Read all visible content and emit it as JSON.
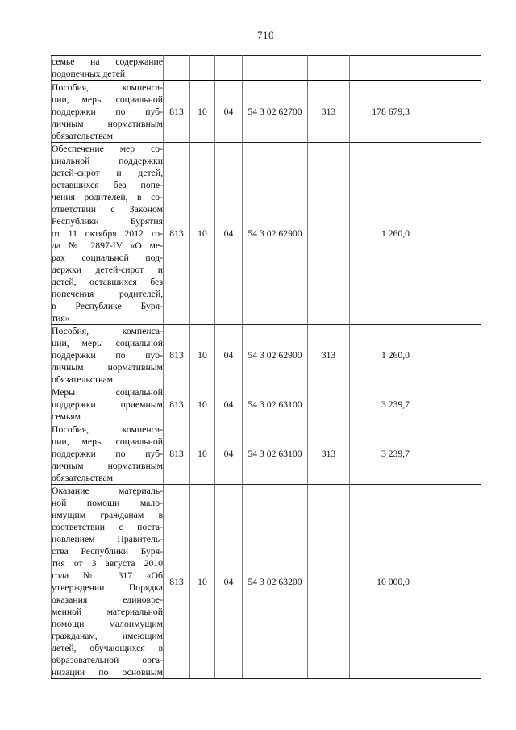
{
  "page": {
    "number": "710"
  },
  "table": {
    "rows": [
      {
        "name_lines": [
          "семье на содержание",
          "подопечных детей"
        ],
        "grbs": "",
        "rz": "",
        "pr": "",
        "csr": "",
        "vr": "",
        "sum": "",
        "note": ""
      },
      {
        "name_lines": [
          "Пособия, компенса-",
          "ции, меры социальной",
          "поддержки по пуб-",
          "личным нормативным",
          "обязательствам"
        ],
        "grbs": "813",
        "rz": "10",
        "pr": "04",
        "csr": "54 3 02 62700",
        "vr": "313",
        "sum": "178 679,3",
        "note": ""
      },
      {
        "name_lines": [
          "Обеспечение мер со-",
          "циальной поддержки",
          "детей-сирот и детей,",
          "оставшихся без попе-",
          "чения родителей, в со-",
          "ответствии с Законом",
          "Республики Бурятия",
          "от 11 октября 2012 го-",
          "да № 2897-IV «О ме-",
          "рах социальной под-",
          "держки детей-сирот и",
          "детей, оставшихся без",
          "попечения родителей,",
          "в Республике Буря-",
          "тия»"
        ],
        "grbs": "813",
        "rz": "10",
        "pr": "04",
        "csr": "54 3 02 62900",
        "vr": "",
        "sum": "1 260,0",
        "note": ""
      },
      {
        "name_lines": [
          "Пособия, компенса-",
          "ции, меры социальной",
          "поддержки по пуб-",
          "личным нормативным",
          "обязательствам"
        ],
        "grbs": "813",
        "rz": "10",
        "pr": "04",
        "csr": "54 3 02 62900",
        "vr": "313",
        "sum": "1 260,0",
        "note": ""
      },
      {
        "name_lines": [
          "Меры социальной",
          "поддержки приемным",
          "семьям"
        ],
        "grbs": "813",
        "rz": "10",
        "pr": "04",
        "csr": "54 3 02 63100",
        "vr": "",
        "sum": "3 239,7",
        "note": ""
      },
      {
        "name_lines": [
          "Пособия, компенса-",
          "ции, меры социальной",
          "поддержки по пуб-",
          "личным нормативным",
          "обязательствам"
        ],
        "grbs": "813",
        "rz": "10",
        "pr": "04",
        "csr": "54 3 02 63100",
        "vr": "313",
        "sum": "3 239,7",
        "note": ""
      },
      {
        "name_lines": [
          "Оказание материаль-",
          "ной помощи мало-",
          "имущим гражданам в",
          "соответствии с поста-",
          "новлением Правитель-",
          "ства Республики Буря-",
          "тия от 3 августа 2010",
          "года № 317 «Об",
          "утверждении Порядка",
          "оказания единовре-",
          "менной материальной",
          "помощи малоимущим",
          "гражданам, имеющим",
          "детей, обучающихся в",
          "образовательной орга-",
          "низации по основным"
        ],
        "grbs": "813",
        "rz": "10",
        "pr": "04",
        "csr": "54 3 02 63200",
        "vr": "",
        "sum": "10 000,0",
        "note": ""
      }
    ]
  }
}
